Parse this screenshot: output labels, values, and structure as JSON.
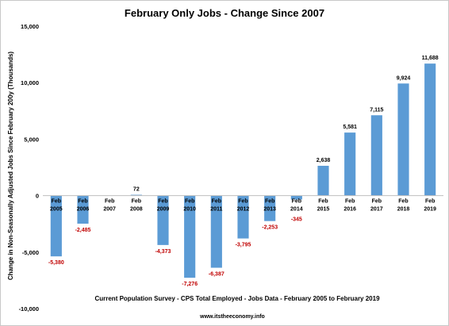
{
  "chart_data": {
    "type": "bar",
    "title": "February Only Jobs - Change Since 2007",
    "ylabel": "Change in Non-Seasonally Adjusted Jobs Since February 200y (Thousands)",
    "ylim": [
      -10000,
      15000
    ],
    "yticks": [
      -10000,
      -5000,
      0,
      5000,
      10000,
      15000
    ],
    "ytick_labels": [
      "-10,000",
      "-5,000",
      "0",
      "5,000",
      "10,000",
      "15,000"
    ],
    "categories": [
      "Feb 2005",
      "Feb 2006",
      "Feb 2007",
      "Feb 2008",
      "Feb 2009",
      "Feb 2010",
      "Feb 2011",
      "Feb 2012",
      "Feb 2013",
      "Feb 2014",
      "Feb 2015",
      "Feb 2016",
      "Feb 2017",
      "Feb 2018",
      "Feb 2019"
    ],
    "category_lines": [
      [
        "Feb",
        "2005"
      ],
      [
        "Feb",
        "2006"
      ],
      [
        "Feb",
        "2007"
      ],
      [
        "Feb",
        "2008"
      ],
      [
        "Feb",
        "2009"
      ],
      [
        "Feb",
        "2010"
      ],
      [
        "Feb",
        "2011"
      ],
      [
        "Feb",
        "2012"
      ],
      [
        "Feb",
        "2013"
      ],
      [
        "Feb",
        "2014"
      ],
      [
        "Feb",
        "2015"
      ],
      [
        "Feb",
        "2016"
      ],
      [
        "Feb",
        "2017"
      ],
      [
        "Feb",
        "2018"
      ],
      [
        "Feb",
        "2019"
      ]
    ],
    "values": [
      -5380,
      -2485,
      0,
      72,
      -4373,
      -7276,
      -6387,
      -3795,
      -2253,
      -345,
      2638,
      5581,
      7115,
      9924,
      11688
    ],
    "data_labels": [
      "-5,380",
      "-2,485",
      "",
      "72",
      "-4,373",
      "-7,276",
      "-6,387",
      "-3,795",
      "-2,253",
      "-345",
      "2,638",
      "5,581",
      "7,115",
      "9,924",
      "11,688"
    ],
    "footnote": "Current Population Survey - CPS Total Employed - Jobs Data - February 2005 to February 2019",
    "source": "www.itstheeconomy.info",
    "grid": false,
    "legend": "none",
    "colors": {
      "bar": "#5b9bd5",
      "negative_label": "#c00000",
      "positive_label": "#000000"
    }
  }
}
